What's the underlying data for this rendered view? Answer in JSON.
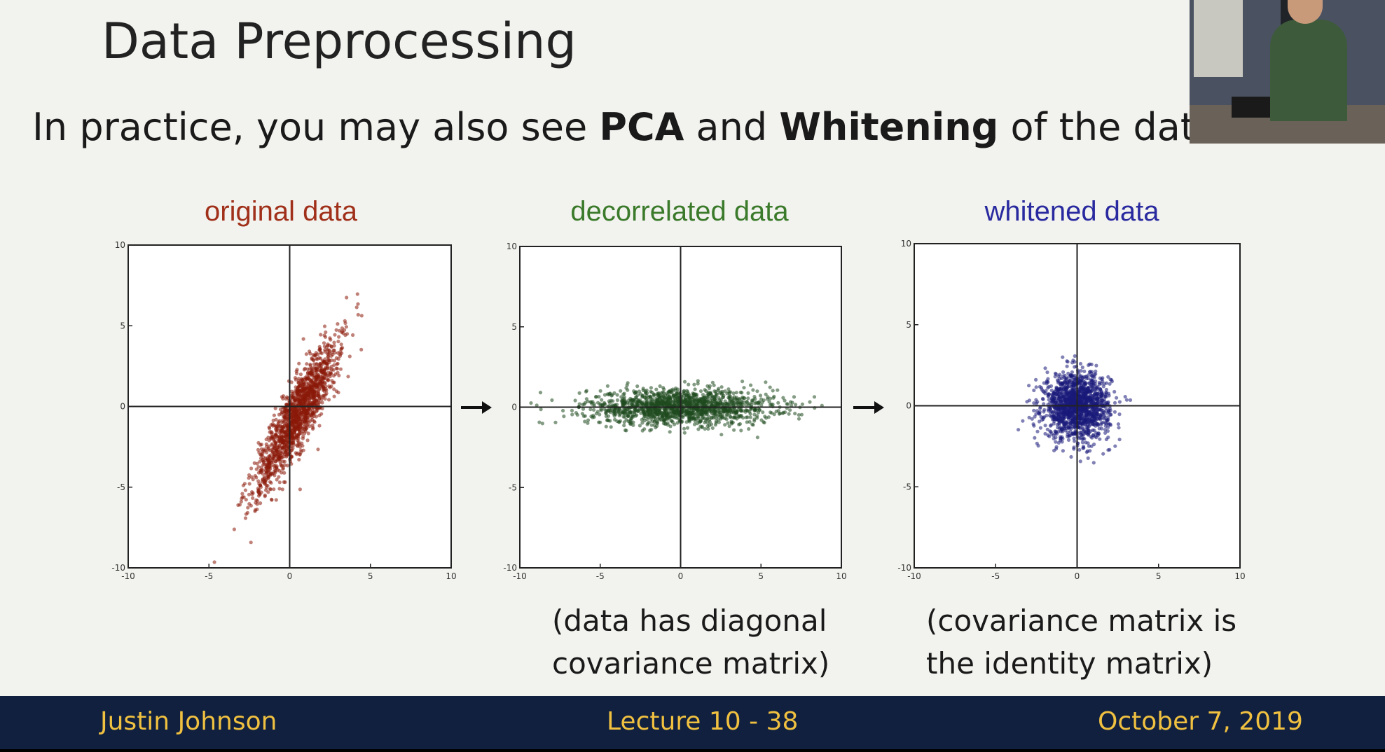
{
  "slide": {
    "title": "Data Preprocessing",
    "subtitle": {
      "part1": "In practice, you may also see ",
      "bold1": "PCA",
      "part2": " and ",
      "bold2": "Whitening",
      "part3": " of the data"
    },
    "captions": {
      "decorrelated": [
        "(data has diagonal",
        "covariance matrix)"
      ],
      "whitened": [
        "(covariance matrix is",
        "the identity matrix)"
      ]
    },
    "arrow_glyph": "→"
  },
  "footer": {
    "left": "Justin Johnson",
    "center": "Lecture 10 - 38",
    "right": "October 7, 2019"
  },
  "chart_data": [
    {
      "type": "scatter",
      "title": "original data",
      "title_color": "#a0301a",
      "point_color": "#8b1a0a",
      "xlim": [
        -10,
        10
      ],
      "ylim": [
        -10,
        10
      ],
      "xticks": [
        "-10",
        "-5",
        "0",
        "5",
        "10"
      ],
      "yticks": [
        "-10",
        "-5",
        "0",
        "5",
        "10"
      ],
      "axes_at_origin": true,
      "grid": false,
      "distribution": {
        "mean": [
          0.5,
          -0.5
        ],
        "std_major": 2.6,
        "std_minor": 0.55,
        "angle_deg": 62,
        "n_points": 1500
      }
    },
    {
      "type": "scatter",
      "title": "decorrelated data",
      "title_color": "#3a7a2a",
      "point_color": "#1f4a1f",
      "xlim": [
        -10,
        10
      ],
      "ylim": [
        -10,
        10
      ],
      "xticks": [
        "-10",
        "-5",
        "0",
        "5",
        "10"
      ],
      "yticks": [
        "-10",
        "-5",
        "0",
        "5",
        "10"
      ],
      "axes_at_origin": true,
      "grid": false,
      "distribution": {
        "mean": [
          0,
          0
        ],
        "std_major": 2.9,
        "std_minor": 0.55,
        "angle_deg": 0,
        "n_points": 1500
      }
    },
    {
      "type": "scatter",
      "title": "whitened data",
      "title_color": "#2a2aa0",
      "point_color": "#1a1a7a",
      "xlim": [
        -10,
        10
      ],
      "ylim": [
        -10,
        10
      ],
      "xticks": [
        "-10",
        "-5",
        "0",
        "5",
        "10"
      ],
      "yticks": [
        "-10",
        "-5",
        "0",
        "5",
        "10"
      ],
      "axes_at_origin": true,
      "grid": false,
      "distribution": {
        "mean": [
          0,
          0
        ],
        "std_major": 1.0,
        "std_minor": 1.0,
        "angle_deg": 0,
        "n_points": 1500
      }
    }
  ]
}
